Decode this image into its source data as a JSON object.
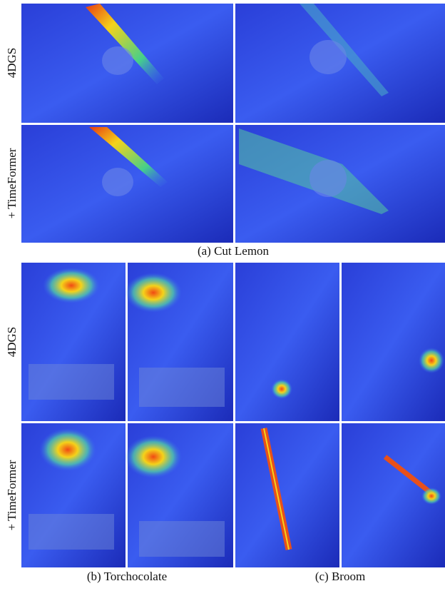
{
  "panels": [
    {
      "row_labels": [
        "4DGS",
        "+ TimeFormer"
      ],
      "caption": "(a) Cut Lemon"
    },
    {
      "row_labels": [
        "4DGS",
        "+ TimeFormer"
      ],
      "captions": [
        "(b) Torchocolate",
        "(c) Broom"
      ]
    }
  ]
}
